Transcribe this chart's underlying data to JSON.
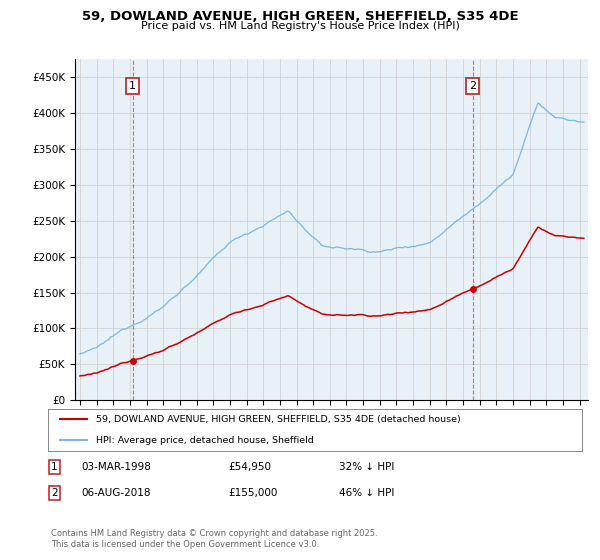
{
  "title_line1": "59, DOWLAND AVENUE, HIGH GREEN, SHEFFIELD, S35 4DE",
  "title_line2": "Price paid vs. HM Land Registry's House Price Index (HPI)",
  "hpi_color": "#7ab8e0",
  "price_color": "#cc0000",
  "hpi_bg_color": "#e8f0f8",
  "sale1_t": 1998.167,
  "sale1_price": 54950,
  "sale2_t": 2018.583,
  "sale2_price": 155000,
  "legend_house_label": "59, DOWLAND AVENUE, HIGH GREEN, SHEFFIELD, S35 4DE (detached house)",
  "legend_hpi_label": "HPI: Average price, detached house, Sheffield",
  "footer_line1": "Contains HM Land Registry data © Crown copyright and database right 2025.",
  "footer_line2": "This data is licensed under the Open Government Licence v3.0.",
  "background_color": "#ffffff",
  "grid_color": "#cccccc",
  "yticks": [
    0,
    50000,
    100000,
    150000,
    200000,
    250000,
    300000,
    350000,
    400000,
    450000
  ],
  "ylim": [
    0,
    475000
  ],
  "xlim_start": 1994.7,
  "xlim_end": 2025.5
}
